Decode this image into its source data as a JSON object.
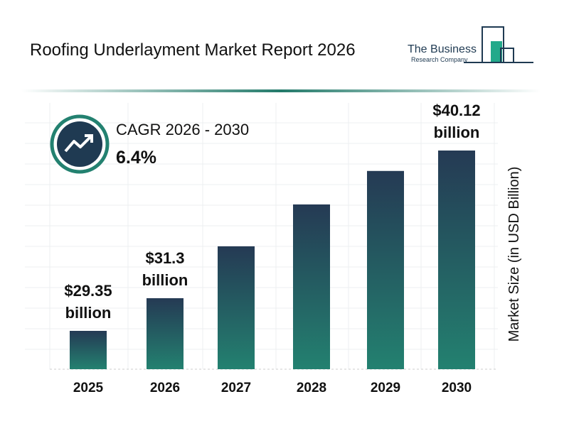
{
  "chart_data": {
    "type": "bar",
    "title": "Roofing Underlayment Market Report 2026",
    "logo": {
      "line1": "The Business",
      "line2": "Research Company"
    },
    "cagr": {
      "label": "CAGR 2026 - 2030",
      "value": "6.4%"
    },
    "y_label": "Market Size (in USD Billion)",
    "categories": [
      "2025",
      "2026",
      "2027",
      "2028",
      "2029",
      "2030"
    ],
    "values": [
      29.35,
      31.3,
      34.4,
      36.9,
      38.9,
      40.12
    ],
    "value_labels": [
      "$29.35 billion",
      "$31.3 billion",
      null,
      null,
      null,
      "$40.12 billion"
    ],
    "color": [
      "#253a54",
      "#238170"
    ]
  }
}
